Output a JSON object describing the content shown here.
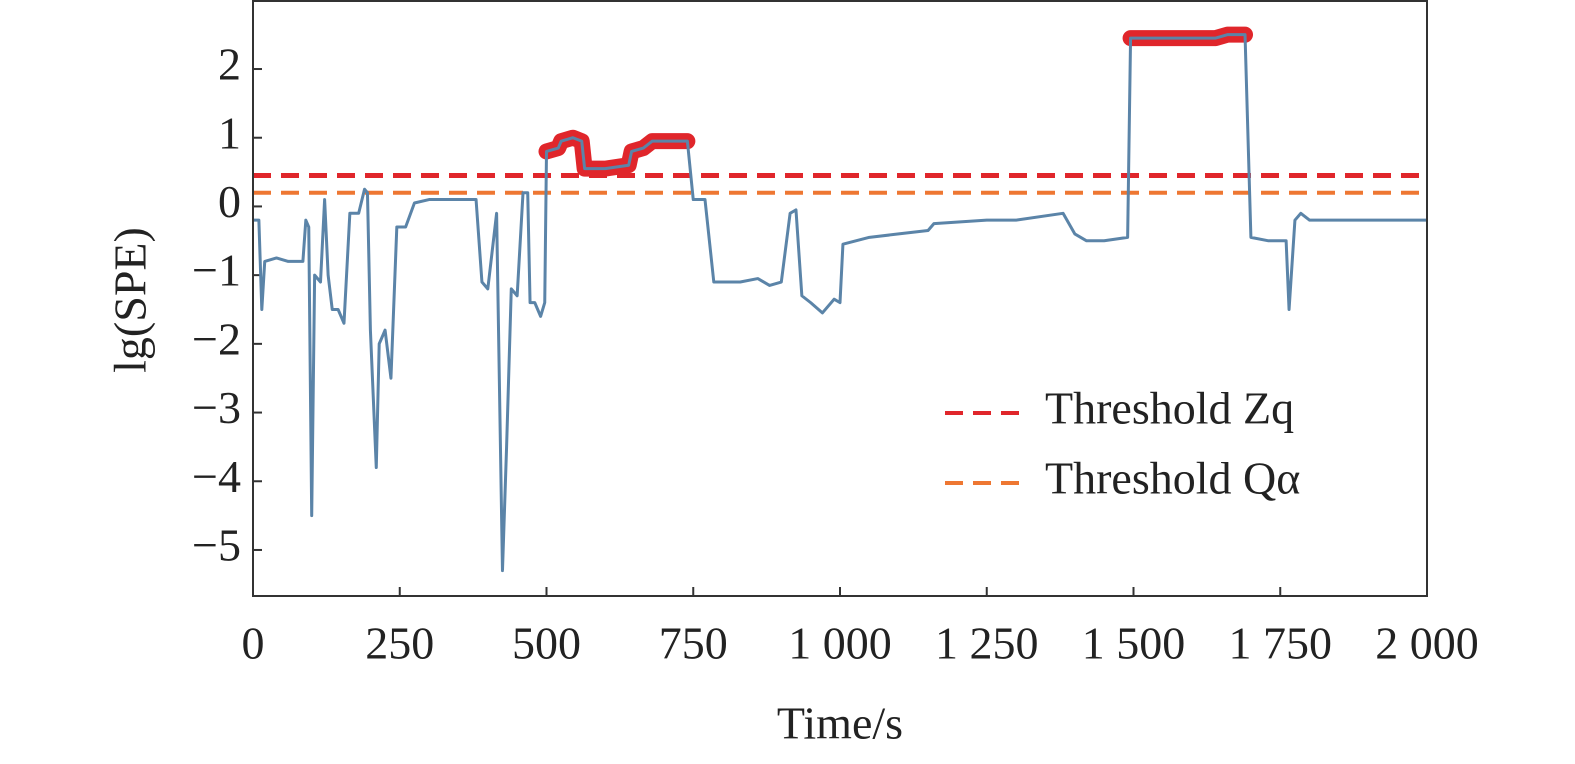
{
  "chart_data": {
    "type": "line",
    "xlabel": "Time/s",
    "ylabel": "lg(SPE)",
    "xlim": [
      0,
      2000
    ],
    "ylim": [
      -5.67,
      2.99
    ],
    "xticks": [
      0,
      250,
      500,
      750,
      {
        "value": 1000,
        "label": "1 000"
      },
      {
        "value": 1250,
        "label": "1 250"
      },
      {
        "value": 1500,
        "label": "1 500"
      },
      {
        "value": 1750,
        "label": "1 750"
      },
      {
        "value": 2000,
        "label": "2 000"
      }
    ],
    "yticks": [
      {
        "value": -5,
        "label": "−5"
      },
      {
        "value": -4,
        "label": "−4"
      },
      {
        "value": -3,
        "label": "−3"
      },
      {
        "value": -2,
        "label": "−2"
      },
      {
        "value": -1,
        "label": "−1"
      },
      0,
      1,
      2
    ],
    "highlight_color": "#e0262b",
    "series": [
      {
        "color": "#5b84a8",
        "x": [
          0,
          10,
          15,
          20,
          40,
          60,
          85,
          90,
          95,
          100,
          105,
          115,
          122,
          128,
          135,
          145,
          155,
          165,
          180,
          190,
          195,
          200,
          210,
          215,
          225,
          235,
          245,
          260,
          275,
          300,
          350,
          380,
          390,
          400,
          415,
          425,
          432,
          440,
          450,
          460,
          468,
          472,
          480,
          490,
          497,
          500,
          520,
          525,
          545,
          560,
          565,
          600,
          640,
          645,
          665,
          680,
          700,
          740,
          750,
          770,
          785,
          810,
          830,
          860,
          880,
          900,
          915,
          925,
          935,
          950,
          970,
          990,
          1000,
          1005,
          1050,
          1100,
          1150,
          1160,
          1250,
          1300,
          1380,
          1400,
          1420,
          1450,
          1490,
          1495,
          1550,
          1640,
          1660,
          1690,
          1700,
          1730,
          1760,
          1765,
          1775,
          1785,
          1800,
          1900,
          2000
        ],
        "values": [
          -0.2,
          -0.2,
          -1.5,
          -0.8,
          -0.75,
          -0.8,
          -0.8,
          -0.2,
          -0.3,
          -4.5,
          -1.0,
          -1.1,
          0.1,
          -1.0,
          -1.5,
          -1.5,
          -1.7,
          -0.1,
          -0.1,
          0.25,
          0.2,
          -1.8,
          -3.8,
          -2.0,
          -1.8,
          -2.5,
          -0.3,
          -0.3,
          0.05,
          0.1,
          0.1,
          0.1,
          -1.1,
          -1.2,
          -0.1,
          -5.3,
          -3.5,
          -1.2,
          -1.3,
          0.2,
          0.2,
          -1.4,
          -1.4,
          -1.6,
          -1.4,
          0.8,
          0.85,
          0.95,
          1.0,
          0.95,
          0.55,
          0.55,
          0.6,
          0.8,
          0.85,
          0.95,
          0.95,
          0.95,
          0.1,
          0.1,
          -1.1,
          -1.1,
          -1.1,
          -1.05,
          -1.15,
          -1.1,
          -0.1,
          -0.05,
          -1.3,
          -1.4,
          -1.55,
          -1.35,
          -1.4,
          -0.55,
          -0.45,
          -0.4,
          -0.35,
          -0.25,
          -0.2,
          -0.2,
          -0.1,
          -0.4,
          -0.5,
          -0.5,
          -0.45,
          2.45,
          2.45,
          2.45,
          2.5,
          2.5,
          -0.45,
          -0.5,
          -0.5,
          -1.5,
          -0.2,
          -0.1,
          -0.2,
          -0.2,
          -0.2
        ]
      }
    ],
    "thresholds": [
      {
        "name": "Threshold Zq",
        "color": "#e0262b",
        "value": 0.45
      },
      {
        "name": "Threshold Qα",
        "color": "#ee7732",
        "value": 0.2
      }
    ]
  }
}
